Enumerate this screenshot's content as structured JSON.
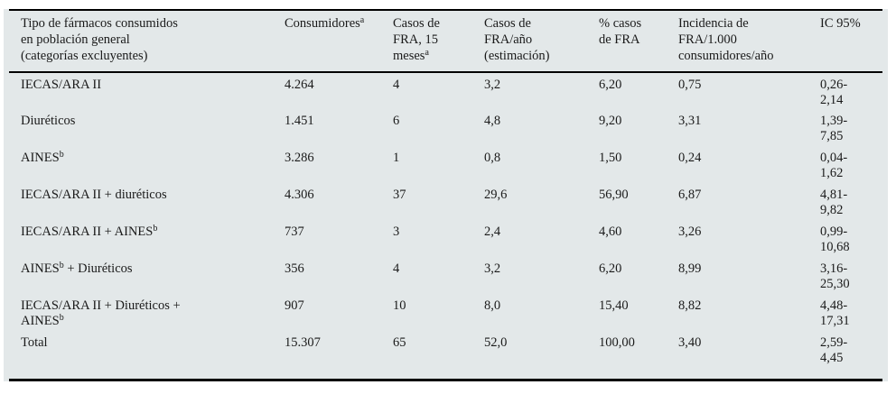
{
  "table": {
    "columns": [
      {
        "id": "drug_type",
        "lines": [
          [
            {
              "t": "Tipo de fármacos consumidos"
            }
          ],
          [
            {
              "t": "en población general"
            }
          ],
          [
            {
              "t": "(categorías excluyentes)"
            }
          ]
        ]
      },
      {
        "id": "consumers",
        "lines": [
          [
            {
              "t": "Consumidores"
            },
            {
              "sup": "a"
            }
          ]
        ]
      },
      {
        "id": "cases_15m",
        "lines": [
          [
            {
              "t": "Casos de"
            }
          ],
          [
            {
              "t": "FRA, 15"
            }
          ],
          [
            {
              "t": "meses"
            },
            {
              "sup": "a"
            }
          ]
        ]
      },
      {
        "id": "cases_year",
        "lines": [
          [
            {
              "t": "Casos de"
            }
          ],
          [
            {
              "t": "FRA/año"
            }
          ],
          [
            {
              "t": "(estimación)"
            }
          ]
        ]
      },
      {
        "id": "pct_cases",
        "lines": [
          [
            {
              "t": "% casos"
            }
          ],
          [
            {
              "t": "de FRA"
            }
          ]
        ]
      },
      {
        "id": "incidence",
        "lines": [
          [
            {
              "t": "Incidencia de"
            }
          ],
          [
            {
              "t": "FRA/1.000"
            }
          ],
          [
            {
              "t": "consumidores/año"
            }
          ]
        ]
      },
      {
        "id": "ci95",
        "lines": [
          [
            {
              "t": "IC 95%"
            }
          ]
        ]
      }
    ],
    "rows": [
      {
        "label": [
          {
            "t": "IECAS/ARA II"
          }
        ],
        "consumers": "4.264",
        "cases_15m": "4",
        "cases_year": "3,2",
        "pct_cases": "6,20",
        "incidence": "0,75",
        "ci95": [
          "0,26-",
          "2,14"
        ],
        "total": false
      },
      {
        "label": [
          {
            "t": "Diuréticos"
          }
        ],
        "consumers": "1.451",
        "cases_15m": "6",
        "cases_year": "4,8",
        "pct_cases": "9,20",
        "incidence": "3,31",
        "ci95": [
          "1,39-",
          "7,85"
        ],
        "total": false
      },
      {
        "label": [
          {
            "t": "AINES"
          },
          {
            "sup": "b"
          }
        ],
        "consumers": "3.286",
        "cases_15m": "1",
        "cases_year": "0,8",
        "pct_cases": "1,50",
        "incidence": "0,24",
        "ci95": [
          "0,04-",
          "1,62"
        ],
        "total": false
      },
      {
        "label": [
          {
            "t": "IECAS/ARA II + diuréticos"
          }
        ],
        "consumers": "4.306",
        "cases_15m": "37",
        "cases_year": "29,6",
        "pct_cases": "56,90",
        "incidence": "6,87",
        "ci95": [
          "4,81-",
          "9,82"
        ],
        "total": false
      },
      {
        "label": [
          {
            "t": "IECAS/ARA II + AINES"
          },
          {
            "sup": "b"
          }
        ],
        "consumers": "737",
        "cases_15m": "3",
        "cases_year": "2,4",
        "pct_cases": "4,60",
        "incidence": "3,26",
        "ci95": [
          "0,99-",
          "10,68"
        ],
        "total": false
      },
      {
        "label": [
          {
            "t": "AINES"
          },
          {
            "sup": "b"
          },
          {
            "t": " + Diuréticos"
          }
        ],
        "consumers": "356",
        "cases_15m": "4",
        "cases_year": "3,2",
        "pct_cases": "6,20",
        "incidence": "8,99",
        "ci95": [
          "3,16-",
          "25,30"
        ],
        "total": false
      },
      {
        "label": [
          {
            "t": "IECAS/ARA II + Diuréticos +"
          },
          {
            "br": true
          },
          {
            "t": "AINES"
          },
          {
            "sup": "b"
          }
        ],
        "consumers": "907",
        "cases_15m": "10",
        "cases_year": "8,0",
        "pct_cases": "15,40",
        "incidence": "8,82",
        "ci95": [
          "4,48-",
          "17,31"
        ],
        "total": false
      },
      {
        "label": [
          {
            "t": "Total"
          }
        ],
        "consumers": "15.307",
        "cases_15m": "65",
        "cases_year": "52,0",
        "pct_cases": "100,00",
        "incidence": "3,40",
        "ci95": [
          "2,59-",
          "4,45"
        ],
        "total": true
      }
    ]
  },
  "colors": {
    "panel_bg": "#e3e8e9",
    "text": "#1a1a1a",
    "rule": "#000000"
  }
}
